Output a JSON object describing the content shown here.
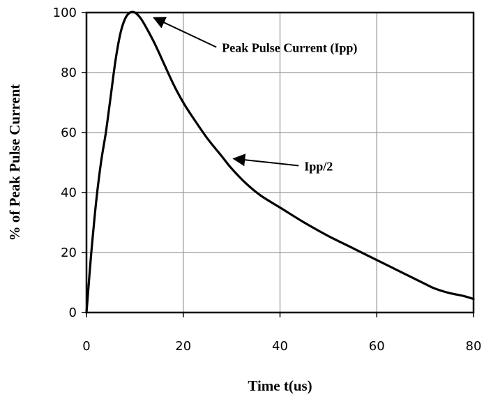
{
  "chart_data": {
    "type": "line",
    "title": "",
    "xlabel": "Time  t(us)",
    "ylabel": "% of Peak Pulse Current",
    "xlim": [
      0,
      80
    ],
    "ylim": [
      0,
      100
    ],
    "xticks": [
      0,
      20,
      40,
      60,
      80
    ],
    "yticks": [
      0,
      20,
      40,
      60,
      80,
      100
    ],
    "xtick_labels": [
      "0",
      "20",
      "40",
      "60",
      "80"
    ],
    "ytick_labels": [
      "0",
      "20",
      "40",
      "60",
      "80",
      "100"
    ],
    "grid": true,
    "series": [
      {
        "color": "#000000",
        "x": [
          0,
          1,
          2,
          3,
          4,
          5,
          6,
          7,
          8,
          9,
          10,
          11,
          12,
          14,
          16,
          18,
          20,
          22,
          25,
          28,
          30,
          33,
          36,
          40,
          45,
          50,
          55,
          60,
          65,
          70,
          72,
          75,
          78,
          80
        ],
        "y": [
          0,
          20,
          37,
          50,
          60,
          72,
          84,
          93,
          98,
          100,
          100,
          98.5,
          96,
          90,
          83,
          76,
          70,
          65,
          58,
          52,
          48,
          43,
          39,
          35,
          30,
          25.5,
          21.5,
          17.5,
          13.5,
          9.5,
          8,
          6.5,
          5.5,
          4.5
        ]
      }
    ],
    "annotations": [
      {
        "text": "Peak Pulse Current (Ipp)",
        "point": [
          13.5,
          98.5
        ],
        "label_at": [
          28,
          88
        ]
      },
      {
        "text": "Ipp/2",
        "point": [
          30,
          51.5
        ],
        "label_at": [
          45,
          48.5
        ]
      }
    ]
  }
}
